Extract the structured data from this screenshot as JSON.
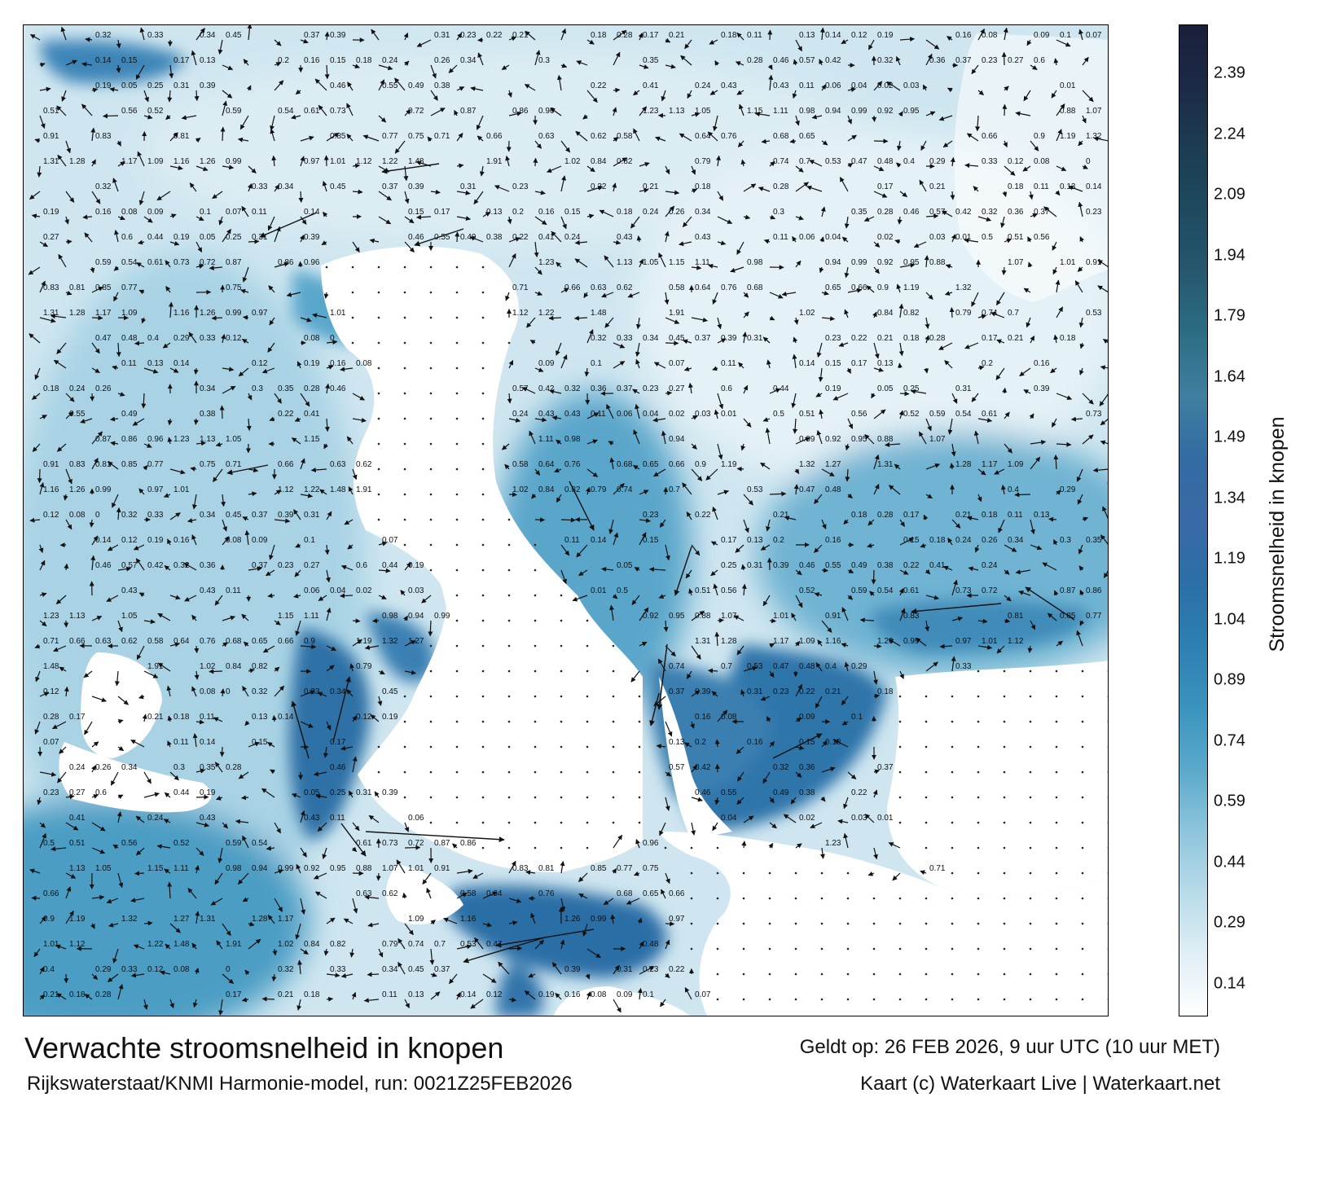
{
  "map": {
    "title": "Verwachte stroomsnelheid in knopen",
    "valid_time": "Geldt op: 26 FEB 2026, 9 uur UTC (10 uur MET)",
    "model_run": "Rijkswaterstaat/KNMI Harmonie-model, run: 0021Z25FEB2026",
    "credit": "Kaart (c) Waterkaart Live | Waterkaart.net",
    "colorbar_label": "Stroomsnelheid in knopen",
    "colorbar_ticks": [
      "2.39",
      "2.24",
      "2.09",
      "1.94",
      "1.79",
      "1.64",
      "1.49",
      "1.34",
      "1.19",
      "1.04",
      "0.89",
      "0.74",
      "0.59",
      "0.44",
      "0.29",
      "0.14"
    ],
    "colorbar_colors": [
      "#ffffff",
      "#dfeef5",
      "#b8dbe9",
      "#8cc4dc",
      "#5aa8cb",
      "#3a93bd",
      "#2d7fb0",
      "#2b6fa5",
      "#3a6aa5",
      "#336ba3",
      "#3f7fa0",
      "#2c6e85",
      "#26586e",
      "#1e4a60",
      "#1c3d52",
      "#1b2a45",
      "#1a1f3a"
    ],
    "land_color": "#ffffff",
    "arrow_color": "#111111",
    "current_labels": [
      "0.32",
      "0.33",
      "0.34",
      "0.45",
      "0.37",
      "0.39",
      "0.31",
      "0.23",
      "0.22",
      "0.21",
      "0.18",
      "0.28",
      "0.17",
      "0.21",
      "0.18",
      "0.11",
      "0.13",
      "0.14",
      "0.12",
      "0.19",
      "0.16",
      "0.08",
      "0.09",
      "0.1",
      "0.07",
      "0.11",
      "0.14",
      "0.15",
      "0.17",
      "0.13",
      "0.2",
      "0.16",
      "0.15",
      "0.18",
      "0.24",
      "0.26",
      "0.34",
      "0.3",
      "0.35",
      "0.28",
      "0.46",
      "0.57",
      "0.42",
      "0.32",
      "0.36",
      "0.37",
      "0.23",
      "0.27",
      "0.6",
      "0.44",
      "0.19",
      "0.05",
      "0.25",
      "0.31",
      "0.39",
      "0.46",
      "0.55",
      "0.49",
      "0.38",
      "0.22",
      "0.41",
      "0.24",
      "0.43",
      "0.43",
      "0.11",
      "0.06",
      "0.04",
      "0.02",
      "0.03",
      "0.01",
      "0.5",
      "0.51",
      "0.56",
      "0.52",
      "0.59",
      "0.54",
      "0.61",
      "0.73",
      "0.72",
      "0.87",
      "0.86",
      "0.96",
      "1.23",
      "1.13",
      "1.05",
      "1.15",
      "1.11",
      "0.98",
      "0.94",
      "0.99",
      "0.92",
      "0.95",
      "0.88",
      "1.07",
      "1.01",
      "0.91",
      "0.83",
      "0.81",
      "0.85",
      "0.77",
      "0.75",
      "0.71",
      "0.66",
      "0.63",
      "0.62",
      "0.58",
      "0.64",
      "0.76",
      "0.68",
      "0.65",
      "0.66",
      "0.9",
      "1.19",
      "1.32",
      "1.27",
      "1.31",
      "1.28",
      "1.17",
      "1.09",
      "1.16",
      "1.26",
      "0.99",
      "0.97",
      "1.01",
      "1.12",
      "1.22",
      "1.48",
      "1.91",
      "1.02",
      "0.84",
      "0.82",
      "0.79",
      "0.74",
      "0.7",
      "0.53",
      "0.47",
      "0.48",
      "0.4",
      "0.29",
      "0.33",
      "0.12",
      "0.08",
      "0"
    ]
  }
}
